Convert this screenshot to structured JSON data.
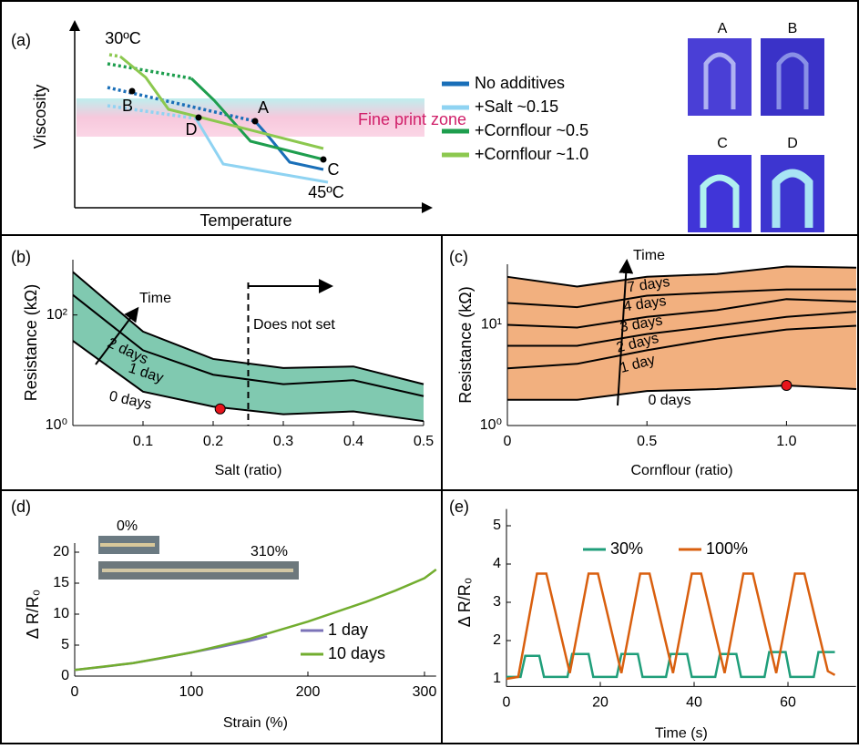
{
  "chart_data": [
    {
      "type": "schematic",
      "label": "(a)",
      "xlabel": "Temperature",
      "ylabel": "Viscosity",
      "annotations": [
        "30ºC",
        "45ºC",
        "Fine print zone"
      ],
      "points": [
        "A",
        "B",
        "C",
        "D"
      ],
      "photos": [
        "A",
        "B",
        "C",
        "D"
      ],
      "series": [
        {
          "name": "No additives",
          "color": "#1a6fb8"
        },
        {
          "name": "+Salt ~0.15",
          "color": "#8fd3f2"
        },
        {
          "name": "+Cornflour ~0.5",
          "color": "#1e9e4e"
        },
        {
          "name": "+Cornflour ~1.0",
          "color": "#8cc84f"
        }
      ]
    },
    {
      "type": "band",
      "label": "(b)",
      "xlabel": "Salt (ratio)",
      "ylabel": "Resistance (kΩ)",
      "yscale": "log",
      "xlim": [
        0,
        0.5
      ],
      "ylim": [
        1,
        1000
      ],
      "xticks": [
        0.1,
        0.2,
        0.3,
        0.4,
        0.5
      ],
      "yticks": [
        {
          "value": 1,
          "label": "10⁰"
        },
        {
          "value": 100,
          "label": "10²"
        }
      ],
      "band_color": "#80c9b0",
      "annotations": [
        "Time",
        "Does not set"
      ],
      "vline": 0.25,
      "highlight": {
        "x": 0.21,
        "y": 2.0,
        "color": "#e8141b"
      },
      "x": [
        0,
        0.1,
        0.2,
        0.3,
        0.4,
        0.5
      ],
      "series": [
        {
          "name": "0 days",
          "color": "#000000",
          "values": [
            34,
            4.1,
            2.2,
            1.6,
            1.8,
            1.2
          ]
        },
        {
          "name": "1 day",
          "color": "#000000",
          "values": [
            230,
            23,
            8.3,
            5.6,
            6.6,
            3.4
          ]
        },
        {
          "name": "2 days",
          "color": "#000000",
          "values": [
            600,
            50,
            16,
            11,
            11.7,
            5.6
          ]
        }
      ]
    },
    {
      "type": "band",
      "label": "(c)",
      "xlabel": "Cornflour (ratio)",
      "ylabel": "Resistance (kΩ)",
      "yscale": "log",
      "xlim": [
        0,
        1.25
      ],
      "ylim": [
        1,
        40
      ],
      "xticks": [
        0,
        0.5,
        {
          "value": 1,
          "label": "1.0"
        }
      ],
      "yticks": [
        {
          "value": 1,
          "label": "10⁰"
        },
        {
          "value": 10,
          "label": "10¹"
        }
      ],
      "band_color": "#f2b07f",
      "annotations": [
        "Time"
      ],
      "highlight": {
        "x": 1.0,
        "y": 2.5,
        "color": "#e8141b"
      },
      "x": [
        0,
        0.25,
        0.5,
        0.75,
        1.0,
        1.25
      ],
      "series": [
        {
          "name": "0 days",
          "color": "#000000",
          "values": [
            1.8,
            1.8,
            2.2,
            2.3,
            2.5,
            2.3
          ]
        },
        {
          "name": "1 day",
          "color": "#000000",
          "values": [
            3.7,
            4.1,
            5.6,
            7.3,
            9.0,
            9.8
          ]
        },
        {
          "name": "2 days",
          "color": "#000000",
          "values": [
            6.2,
            6.2,
            8.1,
            9.8,
            12,
            13.5
          ]
        },
        {
          "name": "3 days",
          "color": "#000000",
          "values": [
            10,
            9.4,
            12,
            14,
            18,
            17
          ]
        },
        {
          "name": "4 days",
          "color": "#000000",
          "values": [
            16.5,
            15,
            19.5,
            21,
            22.5,
            22.5
          ]
        },
        {
          "name": "7 days",
          "color": "#000000",
          "values": [
            30,
            24,
            30,
            32,
            38,
            37
          ]
        }
      ]
    },
    {
      "type": "line",
      "label": "(d)",
      "xlabel": "Strain (%)",
      "ylabel": "Δ R/R₀",
      "xlim": [
        0,
        310
      ],
      "ylim": [
        0,
        20
      ],
      "xticks": [
        0,
        100,
        200,
        300
      ],
      "yticks": [
        0,
        5,
        10,
        15,
        20
      ],
      "legend": "lower right",
      "inset_labels": [
        "0%",
        "310%"
      ],
      "series": [
        {
          "name": "1 day",
          "color": "#7b73b8",
          "x": [
            0,
            25,
            50,
            75,
            100,
            125,
            150,
            165
          ],
          "values": [
            1,
            1.5,
            2.1,
            2.9,
            3.8,
            4.7,
            5.7,
            6.4
          ]
        },
        {
          "name": "10 days",
          "color": "#72ad2f",
          "x": [
            0,
            50,
            100,
            150,
            200,
            250,
            275,
            300,
            310
          ],
          "values": [
            1,
            2.1,
            3.8,
            6,
            8.8,
            12,
            13.8,
            15.8,
            17.2
          ]
        }
      ]
    },
    {
      "type": "line",
      "label": "(e)",
      "xlabel": "Time (s)",
      "ylabel": "Δ R/R₀",
      "xlim": [
        0,
        74.5
      ],
      "ylim": [
        0.8,
        5.2
      ],
      "xticks": [
        0,
        20,
        40,
        60
      ],
      "yticks": [
        1,
        2,
        3,
        4,
        5
      ],
      "legend": "top",
      "series": [
        {
          "name": "30%",
          "color": "#1f9e7a",
          "x": [
            0,
            3,
            4,
            7,
            8,
            13,
            14,
            17.5,
            18.5,
            23.5,
            24.5,
            28,
            29,
            34,
            35,
            38.5,
            39.5,
            44.5,
            45.5,
            49,
            50,
            55,
            56,
            59.5,
            60.5,
            65.5,
            66.5,
            70
          ],
          "values": [
            1.05,
            1.05,
            1.6,
            1.6,
            1.05,
            1.05,
            1.65,
            1.65,
            1.05,
            1.05,
            1.65,
            1.65,
            1.05,
            1.05,
            1.65,
            1.65,
            1.05,
            1.05,
            1.65,
            1.65,
            1.05,
            1.05,
            1.7,
            1.7,
            1.05,
            1.05,
            1.7,
            1.7
          ]
        },
        {
          "name": "100%",
          "color": "#d95f0e",
          "x": [
            0,
            2.5,
            6.5,
            8.5,
            13.5,
            17.5,
            19.5,
            24.5,
            28.5,
            30.5,
            35.5,
            39.5,
            41.5,
            46.5,
            50.5,
            52.5,
            57.5,
            61.5,
            63.5,
            68.5,
            70
          ],
          "values": [
            1.0,
            1.05,
            3.75,
            3.75,
            1.15,
            3.75,
            3.75,
            1.15,
            3.75,
            3.75,
            1.15,
            3.75,
            3.75,
            1.15,
            3.75,
            3.75,
            1.15,
            3.75,
            3.75,
            1.2,
            1.1
          ]
        }
      ]
    }
  ]
}
